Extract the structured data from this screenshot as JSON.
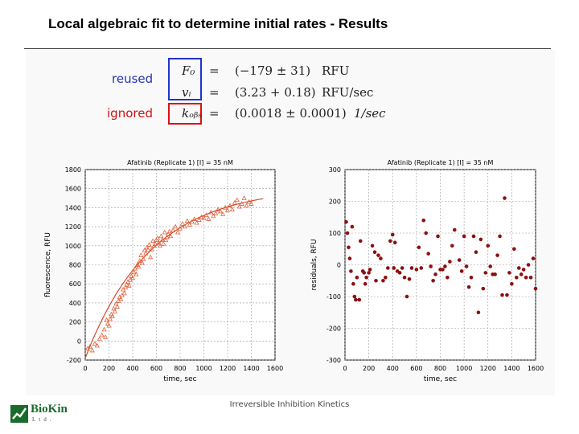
{
  "slide": {
    "title": "Local algebraic fit to determine initial rates - Results",
    "footer": "Irreversible Inhibition Kinetics"
  },
  "logo": {
    "name": "BioKin",
    "sub": "Ltd."
  },
  "results": {
    "reused_label": "reused",
    "ignored_label": "ignored",
    "rows": [
      {
        "symbol": "F₀",
        "eq": "=",
        "value": "(−179 ± 31)",
        "unit": "RFU"
      },
      {
        "symbol": "vᵢ",
        "eq": "=",
        "value": "(3.23 + 0.18)",
        "unit": "RFU/sec"
      },
      {
        "symbol": "kₒᵦₛ",
        "eq": "=",
        "value": "(0.0018 ± 0.0001)",
        "unit": "1/sec"
      }
    ]
  },
  "colors": {
    "reused": "#2233bb",
    "ignored": "#cc1111",
    "fit_points": "#e0603a",
    "fit_curve": "#d44a2a",
    "residual_points": "#8b1010",
    "logo_green": "#1a6b2c"
  },
  "chart_data": [
    {
      "type": "scatter",
      "title": "Afatinib (Replicate 1) [I] = 35 nM",
      "xlabel": "time, sec",
      "ylabel": "fluorescence, RFU",
      "xlim": [
        0,
        1600
      ],
      "ylim": [
        -200,
        1800
      ],
      "xticks": [
        0,
        200,
        400,
        600,
        800,
        1000,
        1200,
        1400,
        1600
      ],
      "yticks": [
        -200,
        0,
        200,
        400,
        600,
        800,
        1000,
        1200,
        1400,
        1600,
        1800
      ],
      "grid": true,
      "marker": "triangle",
      "fit_curve": {
        "expression": "F0 + (vi/kobs)*(1 - exp(-kobs*t))",
        "F0": -179,
        "vi": 3.23,
        "kobs": 0.0018,
        "x_range": [
          0,
          1500
        ]
      },
      "points": [
        [
          20,
          -80
        ],
        [
          40,
          -60
        ],
        [
          60,
          -100
        ],
        [
          80,
          -30
        ],
        [
          100,
          -50
        ],
        [
          120,
          20
        ],
        [
          140,
          60
        ],
        [
          160,
          120
        ],
        [
          170,
          40
        ],
        [
          180,
          220
        ],
        [
          190,
          180
        ],
        [
          200,
          160
        ],
        [
          210,
          230
        ],
        [
          220,
          280
        ],
        [
          230,
          260
        ],
        [
          240,
          340
        ],
        [
          250,
          310
        ],
        [
          260,
          390
        ],
        [
          270,
          360
        ],
        [
          280,
          420
        ],
        [
          290,
          460
        ],
        [
          300,
          440
        ],
        [
          310,
          480
        ],
        [
          320,
          540
        ],
        [
          330,
          500
        ],
        [
          340,
          560
        ],
        [
          350,
          590
        ],
        [
          360,
          620
        ],
        [
          370,
          580
        ],
        [
          380,
          640
        ],
        [
          390,
          680
        ],
        [
          400,
          660
        ],
        [
          410,
          720
        ],
        [
          420,
          760
        ],
        [
          430,
          700
        ],
        [
          440,
          800
        ],
        [
          450,
          780
        ],
        [
          460,
          840
        ],
        [
          470,
          900
        ],
        [
          480,
          820
        ],
        [
          490,
          860
        ],
        [
          500,
          950
        ],
        [
          510,
          920
        ],
        [
          520,
          980
        ],
        [
          530,
          960
        ],
        [
          540,
          1010
        ],
        [
          550,
          880
        ],
        [
          560,
          960
        ],
        [
          570,
          1050
        ],
        [
          580,
          1000
        ],
        [
          590,
          1020
        ],
        [
          600,
          1060
        ],
        [
          610,
          1080
        ],
        [
          620,
          1030
        ],
        [
          630,
          1000
        ],
        [
          640,
          1100
        ],
        [
          650,
          1060
        ],
        [
          660,
          1020
        ],
        [
          670,
          1140
        ],
        [
          680,
          1060
        ],
        [
          690,
          1090
        ],
        [
          700,
          1120
        ],
        [
          710,
          1150
        ],
        [
          720,
          1100
        ],
        [
          740,
          1160
        ],
        [
          760,
          1200
        ],
        [
          780,
          1140
        ],
        [
          800,
          1180
        ],
        [
          820,
          1230
        ],
        [
          840,
          1200
        ],
        [
          860,
          1260
        ],
        [
          880,
          1220
        ],
        [
          900,
          1250
        ],
        [
          920,
          1280
        ],
        [
          940,
          1240
        ],
        [
          960,
          1270
        ],
        [
          980,
          1300
        ],
        [
          1000,
          1290
        ],
        [
          1020,
          1320
        ],
        [
          1040,
          1280
        ],
        [
          1060,
          1350
        ],
        [
          1080,
          1310
        ],
        [
          1100,
          1340
        ],
        [
          1120,
          1380
        ],
        [
          1140,
          1360
        ],
        [
          1160,
          1330
        ],
        [
          1180,
          1400
        ],
        [
          1200,
          1370
        ],
        [
          1220,
          1420
        ],
        [
          1240,
          1380
        ],
        [
          1260,
          1450
        ],
        [
          1280,
          1480
        ],
        [
          1300,
          1410
        ],
        [
          1320,
          1440
        ],
        [
          1340,
          1500
        ],
        [
          1360,
          1420
        ],
        [
          1380,
          1460
        ],
        [
          1400,
          1440
        ]
      ]
    },
    {
      "type": "scatter",
      "title": "Afatinib (Replicate 1) [I] = 35 nM",
      "xlabel": "time, sec",
      "ylabel": "residuals, RFU",
      "xlim": [
        0,
        1600
      ],
      "ylim": [
        -300,
        300
      ],
      "xticks": [
        0,
        200,
        400,
        600,
        800,
        1000,
        1200,
        1400,
        1600
      ],
      "yticks": [
        -300,
        -200,
        -100,
        0,
        100,
        200,
        300
      ],
      "grid": true,
      "marker": "circle",
      "points": [
        [
          10,
          135
        ],
        [
          20,
          100
        ],
        [
          30,
          55
        ],
        [
          40,
          20
        ],
        [
          50,
          -20
        ],
        [
          60,
          120
        ],
        [
          70,
          -60
        ],
        [
          80,
          -100
        ],
        [
          90,
          -110
        ],
        [
          100,
          -40
        ],
        [
          120,
          -110
        ],
        [
          130,
          75
        ],
        [
          150,
          -20
        ],
        [
          160,
          -25
        ],
        [
          170,
          -60
        ],
        [
          180,
          -40
        ],
        [
          200,
          -25
        ],
        [
          210,
          -15
        ],
        [
          230,
          60
        ],
        [
          250,
          40
        ],
        [
          260,
          -50
        ],
        [
          280,
          30
        ],
        [
          300,
          20
        ],
        [
          320,
          -50
        ],
        [
          340,
          -40
        ],
        [
          360,
          -10
        ],
        [
          380,
          75
        ],
        [
          400,
          95
        ],
        [
          410,
          -10
        ],
        [
          420,
          70
        ],
        [
          440,
          -20
        ],
        [
          460,
          -25
        ],
        [
          480,
          -10
        ],
        [
          500,
          -40
        ],
        [
          520,
          -100
        ],
        [
          540,
          -45
        ],
        [
          560,
          -10
        ],
        [
          600,
          -15
        ],
        [
          620,
          55
        ],
        [
          640,
          -10
        ],
        [
          660,
          140
        ],
        [
          680,
          100
        ],
        [
          700,
          35
        ],
        [
          720,
          -5
        ],
        [
          740,
          -50
        ],
        [
          760,
          -30
        ],
        [
          780,
          90
        ],
        [
          800,
          -15
        ],
        [
          820,
          -15
        ],
        [
          840,
          -5
        ],
        [
          860,
          -40
        ],
        [
          880,
          10
        ],
        [
          900,
          60
        ],
        [
          920,
          110
        ],
        [
          960,
          15
        ],
        [
          980,
          -20
        ],
        [
          1000,
          90
        ],
        [
          1020,
          -5
        ],
        [
          1040,
          -70
        ],
        [
          1060,
          -40
        ],
        [
          1080,
          90
        ],
        [
          1100,
          40
        ],
        [
          1120,
          -150
        ],
        [
          1140,
          80
        ],
        [
          1160,
          -75
        ],
        [
          1180,
          -25
        ],
        [
          1200,
          60
        ],
        [
          1220,
          -5
        ],
        [
          1240,
          -30
        ],
        [
          1260,
          -30
        ],
        [
          1280,
          30
        ],
        [
          1300,
          90
        ],
        [
          1320,
          -95
        ],
        [
          1340,
          210
        ],
        [
          1360,
          -95
        ],
        [
          1380,
          -25
        ],
        [
          1400,
          -60
        ],
        [
          1420,
          50
        ],
        [
          1440,
          -40
        ],
        [
          1460,
          -10
        ],
        [
          1480,
          -30
        ],
        [
          1500,
          -15
        ],
        [
          1520,
          -40
        ],
        [
          1540,
          0
        ],
        [
          1560,
          -40
        ],
        [
          1580,
          20
        ],
        [
          1600,
          -75
        ]
      ]
    }
  ]
}
